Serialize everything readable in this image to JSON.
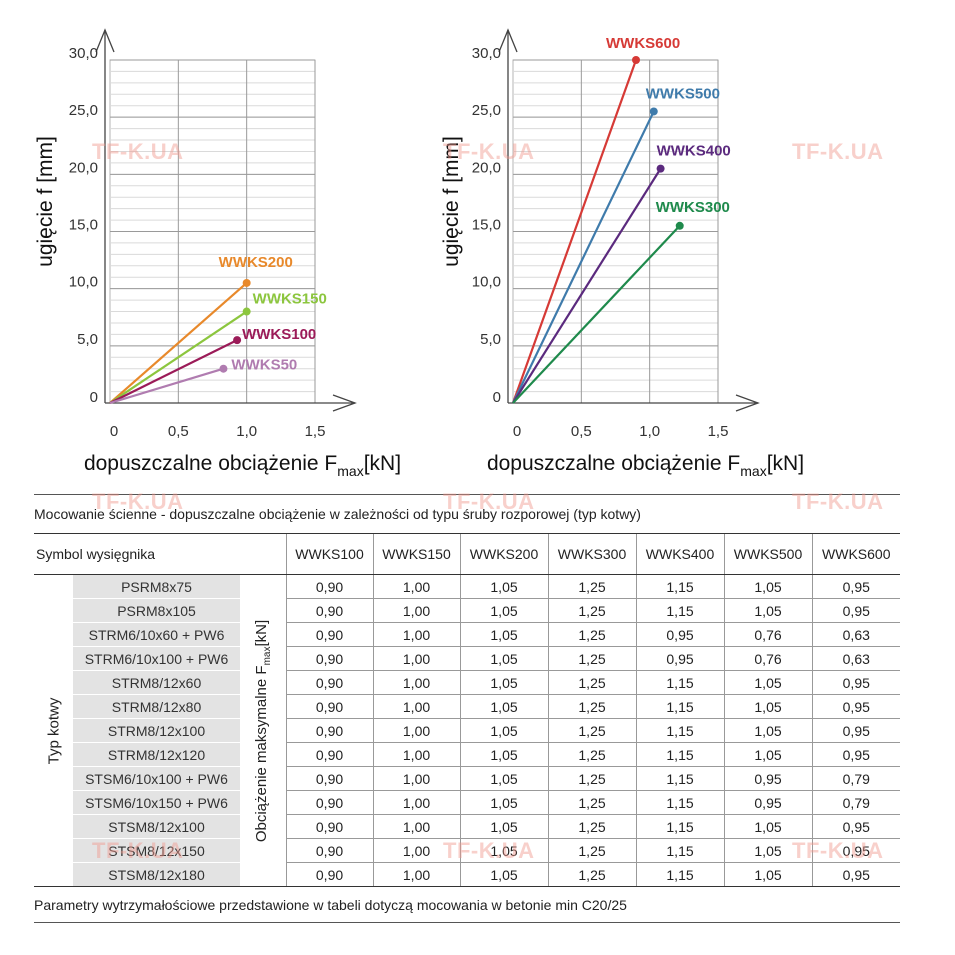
{
  "charts": {
    "ylabel": "ugięcie f [mm]",
    "xlabel_main": "dopuszczalne obciążenie F",
    "xlabel_sub": "max",
    "xlabel_unit": "[kN]",
    "y_tick_labels": [
      "0",
      "5,0",
      "10,0",
      "15,0",
      "20,0",
      "25,0",
      "30,0"
    ],
    "x_tick_labels": [
      "0",
      "0,5",
      "1,0",
      "1,5"
    ]
  },
  "chart_data": [
    {
      "type": "line",
      "xlabel": "dopuszczalne obciążenie Fmax[kN]",
      "ylabel": "ugięcie f [mm]",
      "xlim": [
        0,
        1.5
      ],
      "ylim": [
        0,
        30
      ],
      "grid": true,
      "series": [
        {
          "name": "WWKS200",
          "color": "#e8892b",
          "x": [
            0,
            1.0
          ],
          "y": [
            0,
            10.5
          ]
        },
        {
          "name": "WWKS150",
          "color": "#8cc63e",
          "x": [
            0,
            1.0
          ],
          "y": [
            0,
            8.0
          ]
        },
        {
          "name": "WWKS100",
          "color": "#9b1b58",
          "x": [
            0,
            0.93
          ],
          "y": [
            0,
            5.5
          ]
        },
        {
          "name": "WWKS50",
          "color": "#b07cb0",
          "x": [
            0,
            0.83
          ],
          "y": [
            0,
            3.0
          ]
        }
      ]
    },
    {
      "type": "line",
      "xlabel": "dopuszczalne obciążenie Fmax[kN]",
      "ylabel": "ugięcie f [mm]",
      "xlim": [
        0,
        1.5
      ],
      "ylim": [
        0,
        30
      ],
      "grid": true,
      "series": [
        {
          "name": "WWKS600",
          "color": "#d63a36",
          "x": [
            0,
            0.9
          ],
          "y": [
            0,
            30.0
          ]
        },
        {
          "name": "WWKS500",
          "color": "#3f7bab",
          "x": [
            0,
            1.03
          ],
          "y": [
            0,
            25.5
          ]
        },
        {
          "name": "WWKS400",
          "color": "#5b2a7e",
          "x": [
            0,
            1.08
          ],
          "y": [
            0,
            20.5
          ]
        },
        {
          "name": "WWKS300",
          "color": "#1f8a4c",
          "x": [
            0,
            1.22
          ],
          "y": [
            0,
            15.5
          ]
        }
      ]
    }
  ],
  "watermark": "TF-K.UA",
  "table": {
    "caption": "Mocowanie ścienne - dopuszczalne obciążenie w zależności od typu śruby rozporowej (typ kotwy)",
    "symbol_header": "Symbol wysięgnika",
    "models": [
      "WWKS100",
      "WWKS150",
      "WWKS200",
      "WWKS300",
      "WWKS400",
      "WWKS500",
      "WWKS600"
    ],
    "typ_label": "Typ kotwy",
    "load_label_main": "Obciążenie maksymalne F",
    "load_label_sub": "max",
    "load_label_unit": "[kN]",
    "rows": [
      {
        "anchor": "PSRM8x75",
        "values": [
          "0,90",
          "1,00",
          "1,05",
          "1,25",
          "1,15",
          "1,05",
          "0,95"
        ]
      },
      {
        "anchor": "PSRM8x105",
        "values": [
          "0,90",
          "1,00",
          "1,05",
          "1,25",
          "1,15",
          "1,05",
          "0,95"
        ]
      },
      {
        "anchor": "STRM6/10x60 + PW6",
        "values": [
          "0,90",
          "1,00",
          "1,05",
          "1,25",
          "0,95",
          "0,76",
          "0,63"
        ]
      },
      {
        "anchor": "STRM6/10x100 + PW6",
        "values": [
          "0,90",
          "1,00",
          "1,05",
          "1,25",
          "0,95",
          "0,76",
          "0,63"
        ]
      },
      {
        "anchor": "STRM8/12x60",
        "values": [
          "0,90",
          "1,00",
          "1,05",
          "1,25",
          "1,15",
          "1,05",
          "0,95"
        ]
      },
      {
        "anchor": "STRM8/12x80",
        "values": [
          "0,90",
          "1,00",
          "1,05",
          "1,25",
          "1,15",
          "1,05",
          "0,95"
        ]
      },
      {
        "anchor": "STRM8/12x100",
        "values": [
          "0,90",
          "1,00",
          "1,05",
          "1,25",
          "1,15",
          "1,05",
          "0,95"
        ]
      },
      {
        "anchor": "STRM8/12x120",
        "values": [
          "0,90",
          "1,00",
          "1,05",
          "1,25",
          "1,15",
          "1,05",
          "0,95"
        ]
      },
      {
        "anchor": "STSM6/10x100 + PW6",
        "values": [
          "0,90",
          "1,00",
          "1,05",
          "1,25",
          "1,15",
          "0,95",
          "0,79"
        ]
      },
      {
        "anchor": "STSM6/10x150 + PW6",
        "values": [
          "0,90",
          "1,00",
          "1,05",
          "1,25",
          "1,15",
          "0,95",
          "0,79"
        ]
      },
      {
        "anchor": "STSM8/12x100",
        "values": [
          "0,90",
          "1,00",
          "1,05",
          "1,25",
          "1,15",
          "1,05",
          "0,95"
        ]
      },
      {
        "anchor": "STSM8/12x150",
        "values": [
          "0,90",
          "1,00",
          "1,05",
          "1,25",
          "1,15",
          "1,05",
          "0,95"
        ]
      },
      {
        "anchor": "STSM8/12x180",
        "values": [
          "0,90",
          "1,00",
          "1,05",
          "1,25",
          "1,15",
          "1,05",
          "0,95"
        ]
      }
    ],
    "footnote": "Parametry wytrzymałościowe przedstawione w tabeli dotyczą mocowania w betonie min C20/25"
  }
}
